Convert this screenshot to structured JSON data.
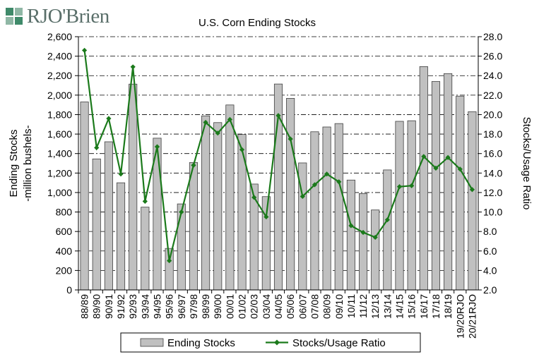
{
  "brand": {
    "name": "RJO'Brien"
  },
  "colors": {
    "bar": "#c0c0c0",
    "bar_stroke": "#404040",
    "line": "#1b7a1b",
    "grid": "#000000"
  },
  "chart_data": {
    "type": "bar",
    "title": "U.S. Corn Ending Stocks",
    "ylabel_left": [
      "Ending Stocks",
      "-million bushels-"
    ],
    "ylabel_right": "Stocks/Usage Ratio",
    "xlabel": "",
    "y_left_ticks": [
      "0",
      "200",
      "400",
      "600",
      "800",
      "1,000",
      "1,200",
      "1,400",
      "1,600",
      "1,800",
      "2,000",
      "2,200",
      "2,400",
      "2,600"
    ],
    "y_right_ticks": [
      "2.0",
      "4.0",
      "6.0",
      "8.0",
      "10.0",
      "12.0",
      "14.0",
      "16.0",
      "18.0",
      "20.0",
      "22.0",
      "24.0",
      "26.0",
      "28.0"
    ],
    "ylim_left": [
      0,
      2600
    ],
    "ylim_right": [
      2.0,
      28.0
    ],
    "grid": "horizontal dash-dot",
    "legend_position": "bottom",
    "categories": [
      "88/89",
      "89/90",
      "90/91",
      "91/92",
      "92/93",
      "93/94",
      "94/95",
      "95/96",
      "96/97",
      "97/98",
      "98/99",
      "99/00",
      "00/01",
      "01/02",
      "02/03",
      "03/04",
      "04/05",
      "05/06",
      "06/07",
      "07/08",
      "08/09",
      "09/10",
      "10/11",
      "11/12",
      "12/13",
      "13/14",
      "14/15",
      "15/16",
      "16/17",
      "17/18",
      "18/19",
      "19/20RJO",
      "20/21RJO"
    ],
    "series": [
      {
        "name": "Ending Stocks",
        "type": "bar",
        "axis": "left",
        "values": [
          1930,
          1345,
          1521,
          1100,
          2113,
          850,
          1558,
          426,
          883,
          1308,
          1787,
          1718,
          1899,
          1596,
          1087,
          958,
          2114,
          1967,
          1304,
          1624,
          1673,
          1708,
          1128,
          989,
          821,
          1232,
          1731,
          1737,
          2293,
          2140,
          2221,
          1990,
          1830
        ]
      },
      {
        "name": "Stocks/Usage Ratio",
        "type": "line",
        "axis": "right",
        "values": [
          26.6,
          16.6,
          19.6,
          13.9,
          24.9,
          11.1,
          16.7,
          5.0,
          10.0,
          14.8,
          19.2,
          18.1,
          19.5,
          16.4,
          11.5,
          9.5,
          19.9,
          17.5,
          11.6,
          12.8,
          13.9,
          13.1,
          8.6,
          7.9,
          7.4,
          9.2,
          12.6,
          12.7,
          15.7,
          14.5,
          15.6,
          14.4,
          12.3
        ]
      }
    ]
  }
}
